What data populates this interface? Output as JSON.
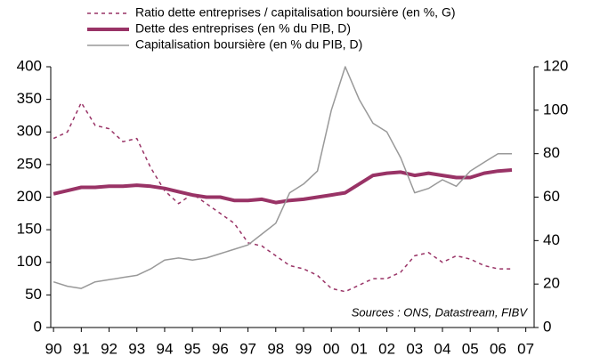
{
  "chart_data": {
    "type": "line",
    "legend": "top",
    "annotation": "Sources :  ONS, Datastream, FIBV",
    "x": [
      1990,
      1990.5,
      1991,
      1991.5,
      1992,
      1992.5,
      1993,
      1993.5,
      1994,
      1994.5,
      1995,
      1995.5,
      1996,
      1996.5,
      1997,
      1997.5,
      1998,
      1998.5,
      1999,
      1999.5,
      2000,
      2000.5,
      2001,
      2001.5,
      2002,
      2002.5,
      2003,
      2003.5,
      2004,
      2004.5,
      2005,
      2005.5,
      2006,
      2006.5
    ],
    "xlim": [
      1989.9,
      2007.3
    ],
    "xticks": [
      {
        "value": 1990,
        "label": "90"
      },
      {
        "value": 1991,
        "label": "91"
      },
      {
        "value": 1992,
        "label": "92"
      },
      {
        "value": 1993,
        "label": "93"
      },
      {
        "value": 1994,
        "label": "94"
      },
      {
        "value": 1995,
        "label": "95"
      },
      {
        "value": 1996,
        "label": "96"
      },
      {
        "value": 1997,
        "label": "97"
      },
      {
        "value": 1998,
        "label": "98"
      },
      {
        "value": 1999,
        "label": "99"
      },
      {
        "value": 2000,
        "label": "00"
      },
      {
        "value": 2001,
        "label": "01"
      },
      {
        "value": 2002,
        "label": "02"
      },
      {
        "value": 2003,
        "label": "03"
      },
      {
        "value": 2004,
        "label": "04"
      },
      {
        "value": 2005,
        "label": "05"
      },
      {
        "value": 2006,
        "label": "06"
      },
      {
        "value": 2007,
        "label": "07"
      }
    ],
    "ylim": [
      0,
      400
    ],
    "yticks": [
      0,
      50,
      100,
      150,
      200,
      250,
      300,
      350,
      400
    ],
    "y2lim": [
      0,
      120
    ],
    "y2ticks": [
      0,
      20,
      40,
      60,
      80,
      100,
      120
    ],
    "series": [
      {
        "name": "Ratio dette entreprises / capitalisation boursière (en %, G)",
        "color": "#993366",
        "dash": true,
        "width": 1.5,
        "values": [
          290,
          300,
          345,
          310,
          305,
          285,
          290,
          245,
          210,
          190,
          205,
          190,
          175,
          160,
          130,
          125,
          110,
          95,
          90,
          80,
          60,
          55,
          65,
          75,
          75,
          85,
          110,
          115,
          100,
          110,
          105,
          95,
          90,
          90
        ]
      },
      {
        "name": "Dette des entreprises  (en % du PIB, D)",
        "color": "#993366",
        "dash": false,
        "width": 4,
        "axis": "y2",
        "values": [
          61.5,
          63,
          64.5,
          64.5,
          65,
          65,
          65.5,
          65,
          64,
          62.5,
          61,
          60,
          60,
          58.5,
          58.5,
          59,
          57.5,
          58.5,
          59,
          60,
          61,
          62,
          66,
          70,
          71,
          71.5,
          70,
          71,
          70,
          69,
          69,
          71,
          72,
          72.5
        ]
      },
      {
        "name": "Capitalisation boursière (en % du PIB, D)",
        "color": "#999999",
        "dash": false,
        "width": 1.5,
        "axis": "y2",
        "values": [
          21,
          19,
          18,
          21,
          22,
          23,
          24,
          27,
          31,
          32,
          31,
          32,
          34,
          36,
          38,
          43,
          48,
          62,
          66,
          72,
          100,
          120,
          105,
          94,
          90,
          78,
          62,
          64,
          68,
          65,
          72,
          76,
          80,
          80
        ]
      }
    ]
  }
}
